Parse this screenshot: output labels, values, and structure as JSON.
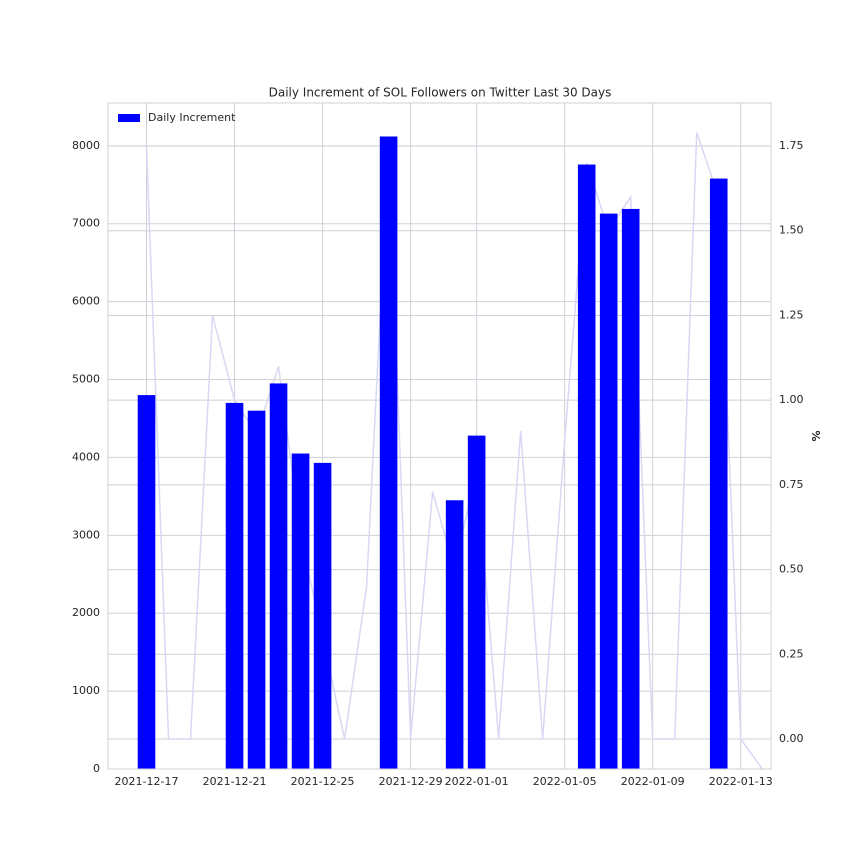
{
  "chart_data": {
    "type": "bar",
    "title": "Daily Increment of SOL Followers on Twitter Last 30 Days",
    "y2label": "%",
    "x": [
      "2021-12-17",
      "2021-12-18",
      "2021-12-19",
      "2021-12-20",
      "2021-12-21",
      "2021-12-22",
      "2021-12-23",
      "2021-12-24",
      "2021-12-25",
      "2021-12-26",
      "2021-12-27",
      "2021-12-28",
      "2021-12-29",
      "2021-12-30",
      "2021-12-31",
      "2022-01-01",
      "2022-01-02",
      "2022-01-03",
      "2022-01-04",
      "2022-01-05",
      "2022-01-06",
      "2022-01-07",
      "2022-01-08",
      "2022-01-09",
      "2022-01-10",
      "2022-01-11",
      "2022-01-12",
      "2022-01-13",
      "2022-01-14"
    ],
    "series": [
      {
        "name": "Daily Increment",
        "type": "bar",
        "color": "#0000ff",
        "values": [
          4800,
          0,
          0,
          0,
          4700,
          4600,
          4950,
          4050,
          3930,
          0,
          0,
          8120,
          0,
          0,
          3450,
          4280,
          0,
          0,
          0,
          0,
          7760,
          7130,
          7190,
          0,
          0,
          0,
          7580,
          0,
          0
        ]
      },
      {
        "type": "line",
        "axis": "y2",
        "color": "#d8d8f4",
        "values": [
          1.75,
          0,
          0,
          1.25,
          1.0,
          0.9,
          1.1,
          0.6,
          0.3,
          0,
          0.45,
          1.75,
          0,
          0.73,
          0.5,
          0.8,
          0,
          0.91,
          0,
          0.88,
          1.7,
          1.5,
          1.6,
          0,
          0,
          1.79,
          1.6,
          0,
          -0.09
        ]
      }
    ],
    "xlim": [
      "2021-12-15T06:00:00Z",
      "2022-01-14T09:00:00Z"
    ],
    "xticks": [
      "2021-12-17",
      "2021-12-21",
      "2021-12-25",
      "2021-12-29",
      "2022-01-01",
      "2022-01-05",
      "2022-01-09",
      "2022-01-13"
    ],
    "ylim": [
      0,
      8550
    ],
    "yticks": [
      0,
      1000,
      2000,
      3000,
      4000,
      5000,
      6000,
      7000,
      8000
    ],
    "y2lim": [
      -0.0885,
      1.877
    ],
    "y2ticks": [
      {
        "value": 0,
        "label": "0.00"
      },
      0.25,
      {
        "value": 0.5,
        "label": "0.50"
      },
      0.75,
      {
        "value": 1,
        "label": "1.00"
      },
      1.25,
      {
        "value": 1.5,
        "label": "1.50"
      },
      1.75
    ],
    "grid": true,
    "legend": "upper left"
  }
}
